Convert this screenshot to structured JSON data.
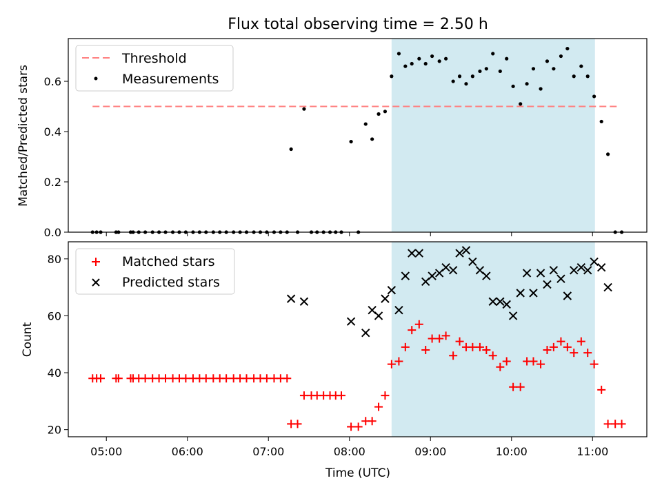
{
  "title": "Flux total observing time = 2.50 h",
  "x_axis": {
    "label": "Time (UTC)",
    "ticks": [
      {
        "value": 5,
        "label": "05:00"
      },
      {
        "value": 6,
        "label": "06:00"
      },
      {
        "value": 7,
        "label": "07:00"
      },
      {
        "value": 8,
        "label": "08:00"
      },
      {
        "value": 9,
        "label": "09:00"
      },
      {
        "value": 10,
        "label": "10:00"
      },
      {
        "value": 11,
        "label": "11:00"
      }
    ],
    "range": [
      4.53,
      11.67
    ]
  },
  "colors": {
    "threshold": "#ff7f7f",
    "measurement": "#000000",
    "matched": "#ff0000",
    "predicted": "#000000",
    "shaded_region": "#add8e6"
  },
  "chart_data": [
    {
      "type": "scatter",
      "ylabel": "Matched/Predicted stars",
      "ylim": [
        0,
        0.77
      ],
      "yticks": [
        "0.0",
        "0.2",
        "0.4",
        "0.6"
      ],
      "ytick_values": [
        0,
        0.2,
        0.4,
        0.6
      ],
      "shaded_x": [
        8.52,
        11.03
      ],
      "legend": {
        "placement": "top-left",
        "entries": [
          "Threshold",
          "Measurements"
        ]
      },
      "threshold": {
        "name": "Threshold",
        "y": 0.5,
        "x": [
          4.83,
          11.33
        ]
      },
      "series": [
        {
          "name": "Measurements",
          "points": [
            [
              4.83,
              0
            ],
            [
              4.88,
              0
            ],
            [
              4.93,
              0
            ],
            [
              5.12,
              0
            ],
            [
              5.15,
              0
            ],
            [
              5.3,
              0
            ],
            [
              5.33,
              0
            ],
            [
              5.4,
              0
            ],
            [
              5.48,
              0
            ],
            [
              5.57,
              0
            ],
            [
              5.65,
              0
            ],
            [
              5.73,
              0
            ],
            [
              5.82,
              0
            ],
            [
              5.9,
              0
            ],
            [
              5.98,
              0
            ],
            [
              6.07,
              0
            ],
            [
              6.15,
              0
            ],
            [
              6.23,
              0
            ],
            [
              6.32,
              0
            ],
            [
              6.4,
              0
            ],
            [
              6.48,
              0
            ],
            [
              6.57,
              0
            ],
            [
              6.65,
              0
            ],
            [
              6.73,
              0
            ],
            [
              6.82,
              0
            ],
            [
              6.9,
              0
            ],
            [
              6.98,
              0
            ],
            [
              7.07,
              0
            ],
            [
              7.15,
              0
            ],
            [
              7.23,
              0
            ],
            [
              7.28,
              0.33
            ],
            [
              7.36,
              0
            ],
            [
              7.44,
              0.49
            ],
            [
              7.53,
              0
            ],
            [
              7.6,
              0
            ],
            [
              7.68,
              0
            ],
            [
              7.76,
              0
            ],
            [
              7.83,
              0
            ],
            [
              7.9,
              0
            ],
            [
              8.02,
              0.36
            ],
            [
              8.11,
              0
            ],
            [
              8.2,
              0.43
            ],
            [
              8.28,
              0.37
            ],
            [
              8.36,
              0.47
            ],
            [
              8.44,
              0.48
            ],
            [
              8.52,
              0.62
            ],
            [
              8.61,
              0.71
            ],
            [
              8.69,
              0.66
            ],
            [
              8.77,
              0.67
            ],
            [
              8.86,
              0.69
            ],
            [
              8.94,
              0.67
            ],
            [
              9.02,
              0.7
            ],
            [
              9.11,
              0.68
            ],
            [
              9.19,
              0.69
            ],
            [
              9.28,
              0.6
            ],
            [
              9.36,
              0.62
            ],
            [
              9.44,
              0.59
            ],
            [
              9.52,
              0.62
            ],
            [
              9.61,
              0.64
            ],
            [
              9.69,
              0.65
            ],
            [
              9.77,
              0.71
            ],
            [
              9.86,
              0.64
            ],
            [
              9.94,
              0.69
            ],
            [
              10.02,
              0.58
            ],
            [
              10.11,
              0.51
            ],
            [
              10.19,
              0.59
            ],
            [
              10.27,
              0.65
            ],
            [
              10.36,
              0.57
            ],
            [
              10.44,
              0.68
            ],
            [
              10.52,
              0.65
            ],
            [
              10.61,
              0.7
            ],
            [
              10.69,
              0.73
            ],
            [
              10.77,
              0.62
            ],
            [
              10.86,
              0.66
            ],
            [
              10.94,
              0.62
            ],
            [
              11.02,
              0.54
            ],
            [
              11.11,
              0.44
            ],
            [
              11.19,
              0.31
            ],
            [
              11.28,
              0
            ],
            [
              11.36,
              0
            ]
          ]
        }
      ]
    },
    {
      "type": "scatter",
      "ylabel": "Count",
      "ylim": [
        17.5,
        86
      ],
      "yticks": [
        "20",
        "40",
        "60",
        "80"
      ],
      "ytick_values": [
        20,
        40,
        60,
        80
      ],
      "shaded_x": [
        8.52,
        11.03
      ],
      "legend": {
        "placement": "top-left",
        "entries": [
          "Matched stars",
          "Predicted stars"
        ]
      },
      "series": [
        {
          "name": "Matched stars",
          "marker": "plus",
          "points": [
            [
              4.83,
              38
            ],
            [
              4.88,
              38
            ],
            [
              4.93,
              38
            ],
            [
              5.12,
              38
            ],
            [
              5.15,
              38
            ],
            [
              5.3,
              38
            ],
            [
              5.33,
              38
            ],
            [
              5.4,
              38
            ],
            [
              5.48,
              38
            ],
            [
              5.57,
              38
            ],
            [
              5.65,
              38
            ],
            [
              5.73,
              38
            ],
            [
              5.82,
              38
            ],
            [
              5.9,
              38
            ],
            [
              5.98,
              38
            ],
            [
              6.07,
              38
            ],
            [
              6.15,
              38
            ],
            [
              6.23,
              38
            ],
            [
              6.32,
              38
            ],
            [
              6.4,
              38
            ],
            [
              6.48,
              38
            ],
            [
              6.57,
              38
            ],
            [
              6.65,
              38
            ],
            [
              6.73,
              38
            ],
            [
              6.82,
              38
            ],
            [
              6.9,
              38
            ],
            [
              6.98,
              38
            ],
            [
              7.07,
              38
            ],
            [
              7.15,
              38
            ],
            [
              7.23,
              38
            ],
            [
              7.28,
              22
            ],
            [
              7.36,
              22
            ],
            [
              7.44,
              32
            ],
            [
              7.53,
              32
            ],
            [
              7.6,
              32
            ],
            [
              7.68,
              32
            ],
            [
              7.76,
              32
            ],
            [
              7.83,
              32
            ],
            [
              7.9,
              32
            ],
            [
              8.02,
              21
            ],
            [
              8.11,
              21
            ],
            [
              8.2,
              23
            ],
            [
              8.28,
              23
            ],
            [
              8.36,
              28
            ],
            [
              8.44,
              32
            ],
            [
              8.52,
              43
            ],
            [
              8.61,
              44
            ],
            [
              8.69,
              49
            ],
            [
              8.77,
              55
            ],
            [
              8.86,
              57
            ],
            [
              8.94,
              48
            ],
            [
              9.02,
              52
            ],
            [
              9.11,
              52
            ],
            [
              9.19,
              53
            ],
            [
              9.28,
              46
            ],
            [
              9.36,
              51
            ],
            [
              9.44,
              49
            ],
            [
              9.52,
              49
            ],
            [
              9.61,
              49
            ],
            [
              9.69,
              48
            ],
            [
              9.77,
              46
            ],
            [
              9.86,
              42
            ],
            [
              9.94,
              44
            ],
            [
              10.02,
              35
            ],
            [
              10.11,
              35
            ],
            [
              10.19,
              44
            ],
            [
              10.27,
              44
            ],
            [
              10.36,
              43
            ],
            [
              10.44,
              48
            ],
            [
              10.52,
              49
            ],
            [
              10.61,
              51
            ],
            [
              10.69,
              49
            ],
            [
              10.77,
              47
            ],
            [
              10.86,
              51
            ],
            [
              10.94,
              47
            ],
            [
              11.02,
              43
            ],
            [
              11.11,
              34
            ],
            [
              11.19,
              22
            ],
            [
              11.28,
              22
            ],
            [
              11.36,
              22
            ]
          ]
        },
        {
          "name": "Predicted stars",
          "marker": "x",
          "points": [
            [
              7.28,
              66
            ],
            [
              7.44,
              65
            ],
            [
              8.02,
              58
            ],
            [
              8.2,
              54
            ],
            [
              8.28,
              62
            ],
            [
              8.36,
              60
            ],
            [
              8.44,
              66
            ],
            [
              8.52,
              69
            ],
            [
              8.61,
              62
            ],
            [
              8.69,
              74
            ],
            [
              8.77,
              82
            ],
            [
              8.86,
              82
            ],
            [
              8.94,
              72
            ],
            [
              9.02,
              74
            ],
            [
              9.11,
              75
            ],
            [
              9.19,
              77
            ],
            [
              9.28,
              76
            ],
            [
              9.36,
              82
            ],
            [
              9.44,
              83
            ],
            [
              9.52,
              79
            ],
            [
              9.61,
              76
            ],
            [
              9.69,
              74
            ],
            [
              9.77,
              65
            ],
            [
              9.86,
              65
            ],
            [
              9.94,
              64
            ],
            [
              10.02,
              60
            ],
            [
              10.11,
              68
            ],
            [
              10.19,
              75
            ],
            [
              10.27,
              68
            ],
            [
              10.36,
              75
            ],
            [
              10.44,
              71
            ],
            [
              10.52,
              76
            ],
            [
              10.61,
              73
            ],
            [
              10.69,
              67
            ],
            [
              10.77,
              76
            ],
            [
              10.86,
              77
            ],
            [
              10.94,
              76
            ],
            [
              11.02,
              79
            ],
            [
              11.11,
              77
            ],
            [
              11.19,
              70
            ]
          ]
        }
      ]
    }
  ]
}
